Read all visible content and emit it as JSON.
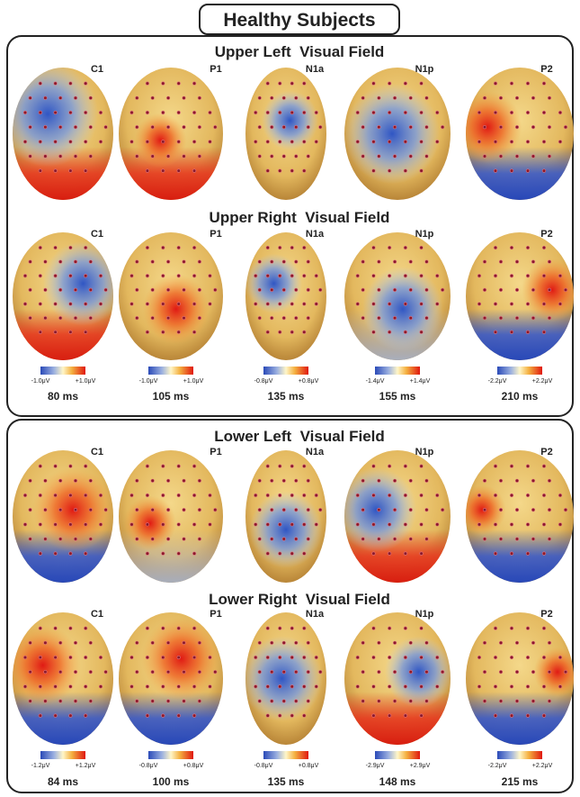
{
  "title": "Healthy Subjects",
  "panels": [
    {
      "rows": [
        {
          "title": "Upper Left  Visual Field",
          "components": [
            "C1",
            "P1",
            "N1a",
            "N1p",
            "P2"
          ]
        },
        {
          "title": "Upper Right  Visual Field",
          "components": [
            "C1",
            "P1",
            "N1a",
            "N1p",
            "P2"
          ]
        }
      ],
      "scales": [
        {
          "min": "-1.0μV",
          "max": "+1.0μV",
          "time": "80 ms"
        },
        {
          "min": "-1.0μV",
          "max": "+1.0μV",
          "time": "105 ms"
        },
        {
          "min": "-0.8μV",
          "max": "+0.8μV",
          "time": "135 ms"
        },
        {
          "min": "-1.4μV",
          "max": "+1.4μV",
          "time": "155 ms"
        },
        {
          "min": "-2.2μV",
          "max": "+2.2μV",
          "time": "210 ms"
        }
      ]
    },
    {
      "rows": [
        {
          "title": "Lower Left  Visual Field",
          "components": [
            "C1",
            "P1",
            "N1a",
            "N1p",
            "P2"
          ]
        },
        {
          "title": "Lower Right  Visual Field",
          "components": [
            "C1",
            "P1",
            "N1a",
            "N1p",
            "P2"
          ]
        }
      ],
      "scales": [
        {
          "min": "-1.2μV",
          "max": "+1.2μV",
          "time": "84 ms"
        },
        {
          "min": "-0.8μV",
          "max": "+0.8μV",
          "time": "100 ms"
        },
        {
          "min": "-0.8μV",
          "max": "+0.8μV",
          "time": "135 ms"
        },
        {
          "min": "-2.9μV",
          "max": "+2.9μV",
          "time": "148 ms"
        },
        {
          "min": "-2.2μV",
          "max": "+2.2μV",
          "time": "215 ms"
        }
      ]
    }
  ]
}
